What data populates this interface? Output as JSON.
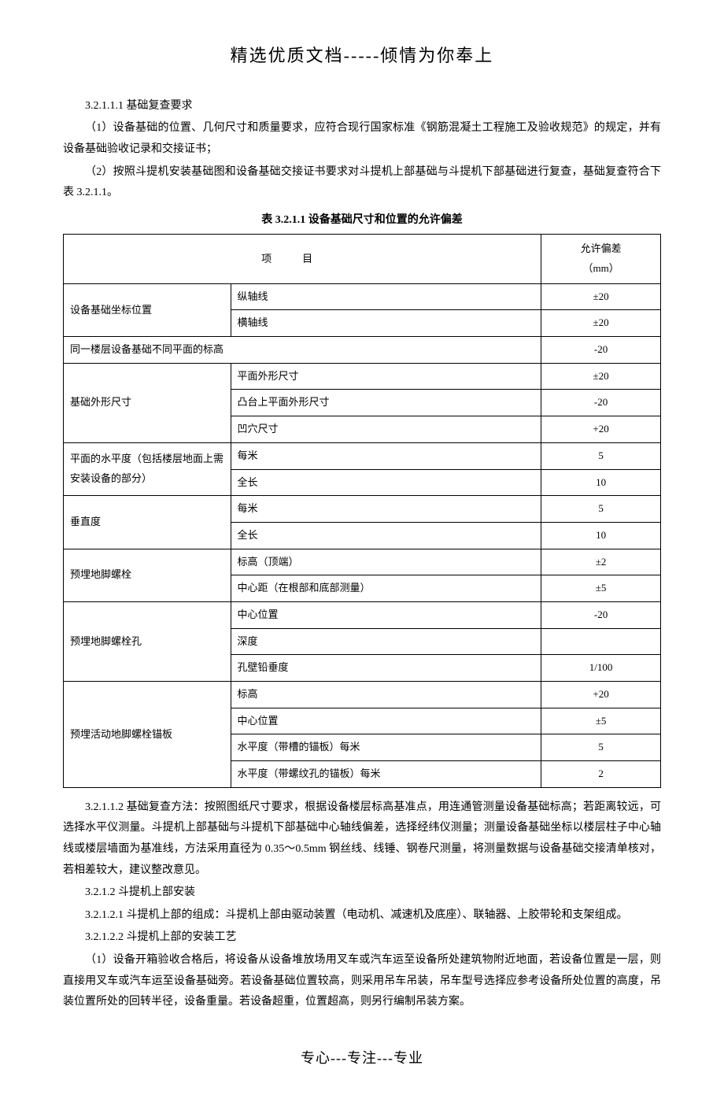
{
  "header": {
    "title": "精选优质文档-----倾情为你奉上"
  },
  "sections": {
    "s1_num": "3.2.1.1.1 基础复查要求",
    "s1_p1": "（1）设备基础的位置、几何尺寸和质量要求，应符合现行国家标准《钢筋混凝土工程施工及验收规范》的规定，并有设备基础验收记录和交接证书；",
    "s1_p2": "（2）按照斗提机安装基础图和设备基础交接证书要求对斗提机上部基础与斗提机下部基础进行复查，基础复查符合下表 3.2.1.1。",
    "table_caption": "表 3.2.1.1  设备基础尺寸和位置的允许偏差",
    "s2_num": "3.2.1.1.2 基础复查方法：按照图纸尺寸要求，根据设备楼层标高基准点，用连通管测量设备基础标高；若距离较远，可选择水平仪测量。斗提机上部基础与斗提机下部基础中心轴线偏差，选择经纬仪测量；测量设备基础坐标以楼层柱子中心轴线或楼层墙面为基准线，方法采用直径为 0.35～0.5mm 钢丝线、线锤、钢卷尺测量，将测量数据与设备基础交接清单核对，若相差较大，建议整改意见。",
    "s3_num": "3.2.1.2 斗提机上部安装",
    "s4_num": "3.2.1.2.1 斗提机上部的组成：斗提机上部由驱动装置（电动机、减速机及底座）、联轴器、上胶带轮和支架组成。",
    "s5_num": "3.2.1.2.2 斗提机上部的安装工艺",
    "s5_p1": "（1）设备开箱验收合格后，将设备从设备堆放场用叉车或汽车运至设备所处建筑物附近地面，若设备位置是一层，则直接用叉车或汽车运至设备基础旁。若设备基础位置较高，则采用吊车吊装，吊车型号选择应参考设备所处位置的高度，吊装位置所处的回转半径，设备重量。若设备超重，位置超高，则另行编制吊装方案。"
  },
  "table": {
    "header_item": "项目",
    "header_dev": "允许偏差",
    "header_dev_unit": "（mm）",
    "rows": [
      {
        "item": "设备基础坐标位置",
        "sub": "纵轴线",
        "dev": "±20",
        "rowspan": 2
      },
      {
        "item": "",
        "sub": "横轴线",
        "dev": "±20"
      },
      {
        "item": "同一楼层设备基础不同平面的标高",
        "sub": "",
        "dev": "-20",
        "colspan": 2
      },
      {
        "item": "基础外形尺寸",
        "sub": "平面外形尺寸",
        "dev": "±20",
        "rowspan": 3
      },
      {
        "item": "",
        "sub": "凸台上平面外形尺寸",
        "dev": "-20"
      },
      {
        "item": "",
        "sub": "凹穴尺寸",
        "dev": "+20"
      },
      {
        "item": "平面的水平度（包括楼层地面上需安装设备的部分）",
        "sub": "每米",
        "dev": "5",
        "rowspan": 2
      },
      {
        "item": "",
        "sub": "全长",
        "dev": "10"
      },
      {
        "item": "垂直度",
        "sub": "每米",
        "dev": "5",
        "rowspan": 2
      },
      {
        "item": "",
        "sub": "全长",
        "dev": "10"
      },
      {
        "item": "预埋地脚螺栓",
        "sub": "标高（顶端）",
        "dev": "±2",
        "rowspan": 2
      },
      {
        "item": "",
        "sub": "中心距（在根部和底部测量）",
        "dev": "±5"
      },
      {
        "item": "预埋地脚螺栓孔",
        "sub": "中心位置",
        "dev": "-20",
        "rowspan": 3
      },
      {
        "item": "",
        "sub": "深度",
        "dev": ""
      },
      {
        "item": "",
        "sub": "孔壁铅垂度",
        "dev": "1/100"
      },
      {
        "item": "预埋活动地脚螺栓锚板",
        "sub": "标高",
        "dev": "+20",
        "rowspan": 4
      },
      {
        "item": "",
        "sub": "中心位置",
        "dev": "±5"
      },
      {
        "item": "",
        "sub": "水平度（带槽的锚板）每米",
        "dev": "5"
      },
      {
        "item": "",
        "sub": "水平度（带螺纹孔的锚板）每米",
        "dev": "2"
      }
    ]
  },
  "footer": {
    "title": "专心---专注---专业"
  }
}
